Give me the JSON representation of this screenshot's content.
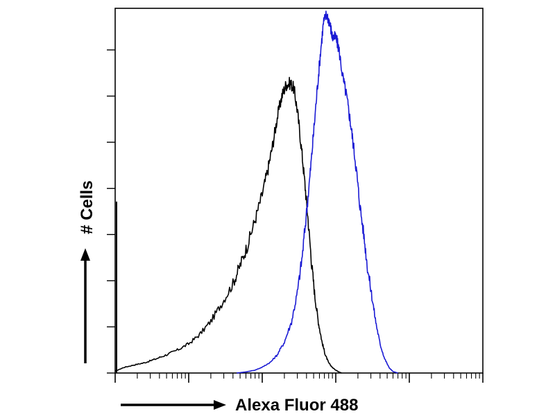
{
  "chart_data": {
    "type": "line",
    "title": "",
    "xlabel": "Alexa Fluor 488",
    "ylabel": "# Cells",
    "x_scale": "log",
    "xlim": [
      1,
      100000
    ],
    "ylim": [
      0,
      100
    ],
    "grid": false,
    "legend": "none",
    "series": [
      {
        "color": "#000000",
        "points": [
          [
            1,
            0.5
          ],
          [
            1.3,
            1.5
          ],
          [
            1.8,
            2.2
          ],
          [
            2.5,
            2.8
          ],
          [
            3.5,
            3.8
          ],
          [
            5,
            5
          ],
          [
            7,
            6.3
          ],
          [
            10,
            8
          ],
          [
            14,
            10.5
          ],
          [
            20,
            14.2
          ],
          [
            28,
            19
          ],
          [
            40,
            24.5
          ],
          [
            50,
            29.5
          ],
          [
            63,
            35
          ],
          [
            80,
            42
          ],
          [
            100,
            49
          ],
          [
            120,
            56
          ],
          [
            140,
            63
          ],
          [
            160,
            70
          ],
          [
            185,
            76
          ],
          [
            210,
            79
          ],
          [
            240,
            79.5
          ],
          [
            270,
            78
          ],
          [
            300,
            72
          ],
          [
            340,
            62
          ],
          [
            380,
            52
          ],
          [
            420,
            42
          ],
          [
            470,
            30
          ],
          [
            520,
            21
          ],
          [
            580,
            14
          ],
          [
            650,
            8.5
          ],
          [
            720,
            5
          ],
          [
            800,
            2.8
          ],
          [
            900,
            1.5
          ],
          [
            1000,
            0.8
          ],
          [
            1100,
            0.3
          ],
          [
            1200,
            0
          ]
        ]
      },
      {
        "color": "#1a1ad4",
        "points": [
          [
            45,
            0
          ],
          [
            60,
            0.3
          ],
          [
            80,
            0.8
          ],
          [
            100,
            1.6
          ],
          [
            130,
            3
          ],
          [
            160,
            5
          ],
          [
            200,
            8.5
          ],
          [
            250,
            14
          ],
          [
            300,
            22
          ],
          [
            350,
            32
          ],
          [
            400,
            44
          ],
          [
            450,
            55
          ],
          [
            500,
            66
          ],
          [
            560,
            78
          ],
          [
            620,
            88
          ],
          [
            680,
            96
          ],
          [
            750,
            98.5
          ],
          [
            830,
            96
          ],
          [
            900,
            92
          ],
          [
            1000,
            92
          ],
          [
            1100,
            89
          ],
          [
            1250,
            81
          ],
          [
            1400,
            76
          ],
          [
            1550,
            70
          ],
          [
            1700,
            64
          ],
          [
            1900,
            56
          ],
          [
            2100,
            47
          ],
          [
            2400,
            38
          ],
          [
            2700,
            29
          ],
          [
            3100,
            21
          ],
          [
            3500,
            14
          ],
          [
            4000,
            8
          ],
          [
            4600,
            4
          ],
          [
            5300,
            1.5
          ],
          [
            6000,
            0.4
          ],
          [
            7000,
            0
          ]
        ]
      }
    ]
  }
}
